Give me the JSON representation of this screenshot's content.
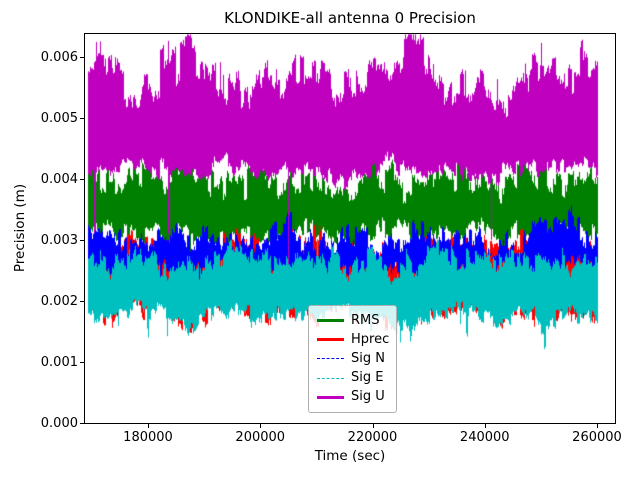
{
  "chart_data": {
    "type": "line",
    "title": "KLONDIKE-all antenna 0 Precision",
    "xlabel": "Time (sec)",
    "ylabel": "Precision (m)",
    "xlim": [
      168775,
      263207
    ],
    "ylim": [
      0,
      0.006377
    ],
    "xticks": [
      180000,
      200000,
      220000,
      240000,
      260000
    ],
    "xtick_labels": [
      "180000",
      "200000",
      "220000",
      "240000",
      "260000"
    ],
    "yticks": [
      0.0,
      0.001,
      0.002,
      0.003,
      0.004,
      0.005,
      0.006
    ],
    "ytick_labels": [
      "0.000",
      "0.001",
      "0.002",
      "0.003",
      "0.004",
      "0.005",
      "0.006"
    ],
    "grid": false,
    "legend_position": "lower center-left inside axes",
    "background": "#ffffff",
    "axis_color": "#000000",
    "x_data_range": [
      169300,
      260000
    ],
    "noise_seed": 42,
    "series": [
      {
        "name": "RMS",
        "color": "#008000",
        "style": "solid",
        "description": "noisy band of line values; approximate envelope sampled vs time",
        "band": {
          "t": [
            169000,
            173550,
            178100,
            182650,
            187200,
            191750,
            196300,
            200850,
            205400,
            209950,
            214500,
            219050,
            223600,
            228150,
            232700,
            237250,
            241800,
            246350,
            250900,
            255450,
            260000
          ],
          "hi": [
            0.0041,
            0.0039,
            0.0041,
            0.004,
            0.0042,
            0.0038,
            0.004,
            0.0041,
            0.0039,
            0.004,
            0.0038,
            0.0041,
            0.004,
            0.0038,
            0.004,
            0.0041,
            0.0039,
            0.004,
            0.0041,
            0.0039,
            0.004
          ],
          "lo": [
            0.0031,
            0.0032,
            0.003,
            0.0031,
            0.0032,
            0.003,
            0.0031,
            0.003,
            0.0032,
            0.0031,
            0.003,
            0.0031,
            0.0032,
            0.003,
            0.0031,
            0.0032,
            0.003,
            0.0031,
            0.003,
            0.0032,
            0.0031
          ]
        },
        "noise": {
          "hi": [
            0.0002,
            0.00014,
            7e-05
          ],
          "lo": [
            0.00013,
            0.0001,
            5e-05
          ],
          "b": [
            3,
            9
          ],
          "down": [
            0.01,
            0.0007
          ],
          "up": [
            0.01,
            0.0003
          ]
        }
      },
      {
        "name": "Hprec",
        "color": "#ff0000",
        "style": "solid",
        "description": "mostly hidden behind Sig N / Sig E bands; visible as small red slivers near 0.002-0.003",
        "band": {
          "t": [
            169000,
            173550,
            178100,
            182650,
            187200,
            191750,
            196300,
            200850,
            205400,
            209950,
            214500,
            219050,
            223600,
            228150,
            232700,
            237250,
            241800,
            246350,
            250900,
            255450,
            260000
          ],
          "hi": [
            0.0029,
            0.0028,
            0.003,
            0.0028,
            0.0027,
            0.0029,
            0.003,
            0.0028,
            0.0029,
            0.003,
            0.0028,
            0.0029,
            0.0027,
            0.0028,
            0.003,
            0.0029,
            0.0028,
            0.003,
            0.0029,
            0.0028,
            0.0029
          ],
          "lo": [
            0.0019,
            0.0018,
            0.002,
            0.0019,
            0.0017,
            0.0019,
            0.002,
            0.0018,
            0.0019,
            0.0018,
            0.002,
            0.0019,
            0.0017,
            0.0018,
            0.0019,
            0.002,
            0.0018,
            0.0019,
            0.0017,
            0.0019,
            0.0018
          ]
        },
        "noise": {
          "hi": [
            0.00016,
            0.0001,
            6e-05
          ],
          "lo": [
            0.0002,
            0.0001,
            6e-05
          ],
          "b": [
            3,
            9
          ],
          "down": [
            0.02,
            0.0003
          ],
          "up": [
            0.004,
            0.0002
          ]
        }
      },
      {
        "name": "Sig N",
        "color": "#0000ff",
        "style": "dashed",
        "description": "blue dashed series forming dense band ~0.0024-0.0032",
        "band": {
          "t": [
            169000,
            173550,
            178100,
            182650,
            187200,
            191750,
            196300,
            200850,
            205400,
            209950,
            214500,
            219050,
            223600,
            228150,
            232700,
            237250,
            241800,
            246350,
            250900,
            255450,
            260000
          ],
          "hi": [
            0.003,
            0.0031,
            0.0029,
            0.0032,
            0.003,
            0.0031,
            0.0029,
            0.003,
            0.0032,
            0.0029,
            0.0031,
            0.003,
            0.0029,
            0.0031,
            0.003,
            0.0032,
            0.0029,
            0.003,
            0.0033,
            0.0032,
            0.003
          ],
          "lo": [
            0.0025,
            0.0024,
            0.0026,
            0.0025,
            0.0024,
            0.0026,
            0.0025,
            0.0024,
            0.0025,
            0.0026,
            0.0024,
            0.0025,
            0.0026,
            0.0024,
            0.0025,
            0.0024,
            0.0026,
            0.0025,
            0.0024,
            0.0026,
            0.0025
          ]
        },
        "noise": {
          "hi": [
            0.00016,
            0.00012,
            6e-05
          ],
          "lo": [
            0.00012,
            8e-05,
            5e-05
          ],
          "b": [
            3,
            9
          ],
          "down": [
            0.02,
            0.0005
          ],
          "up": [
            0.008,
            0.00035
          ]
        }
      },
      {
        "name": "Sig E",
        "color": "#00bfbf",
        "style": "dashed",
        "description": "cyan dashed series forming dense band ~0.0016-0.0028",
        "band": {
          "t": [
            169000,
            173550,
            178100,
            182650,
            187200,
            191750,
            196300,
            200850,
            205400,
            209950,
            214500,
            219050,
            223600,
            228150,
            232700,
            237250,
            241800,
            246350,
            250900,
            255450,
            260000
          ],
          "hi": [
            0.0027,
            0.0026,
            0.0028,
            0.0026,
            0.0025,
            0.0027,
            0.0028,
            0.0026,
            0.0027,
            0.0028,
            0.0026,
            0.0027,
            0.0025,
            0.0026,
            0.0028,
            0.0027,
            0.0026,
            0.0028,
            0.0027,
            0.0026,
            0.0027
          ],
          "lo": [
            0.0018,
            0.0017,
            0.0019,
            0.0018,
            0.0016,
            0.0018,
            0.0019,
            0.0017,
            0.0018,
            0.0017,
            0.0019,
            0.0018,
            0.0016,
            0.0017,
            0.0018,
            0.0019,
            0.0017,
            0.0018,
            0.0016,
            0.0018,
            0.0017
          ]
        },
        "noise": {
          "hi": [
            0.00016,
            0.00012,
            6e-05
          ],
          "lo": [
            0.0001,
            8e-05,
            5e-05
          ],
          "b": [
            3,
            9
          ],
          "down": [
            0.025,
            0.0004
          ],
          "up": [
            0.005,
            0.00025
          ]
        }
      },
      {
        "name": "Sig U",
        "color": "#bf00bf",
        "style": "solid",
        "description": "magenta series forming dense band ~0.0040-0.0063 with narrow spikes down to ~0.0025",
        "band": {
          "t": [
            169000,
            173550,
            178100,
            182650,
            187200,
            191750,
            196300,
            200850,
            205400,
            209950,
            214500,
            219050,
            223600,
            228150,
            232700,
            237250,
            241800,
            246350,
            250900,
            255450,
            260000
          ],
          "hi": [
            0.0057,
            0.0059,
            0.0053,
            0.0058,
            0.0062,
            0.0057,
            0.0053,
            0.0059,
            0.0056,
            0.0058,
            0.0054,
            0.0057,
            0.006,
            0.0062,
            0.0054,
            0.0057,
            0.0053,
            0.0055,
            0.0059,
            0.0057,
            0.006
          ],
          "lo": [
            0.0042,
            0.004,
            0.0043,
            0.0041,
            0.004,
            0.0042,
            0.0043,
            0.004,
            0.0041,
            0.0042,
            0.004,
            0.0041,
            0.0043,
            0.004,
            0.0042,
            0.0041,
            0.004,
            0.0042,
            0.0041,
            0.0043,
            0.0041
          ]
        },
        "noise": {
          "hi": [
            0.00028,
            0.00022,
            8e-05
          ],
          "lo": [
            0.00012,
            8e-05,
            5e-05
          ],
          "b": [
            4,
            9
          ],
          "down": [
            0.012,
            0.0017
          ],
          "up": [
            0.03,
            0.00045
          ]
        }
      }
    ]
  }
}
